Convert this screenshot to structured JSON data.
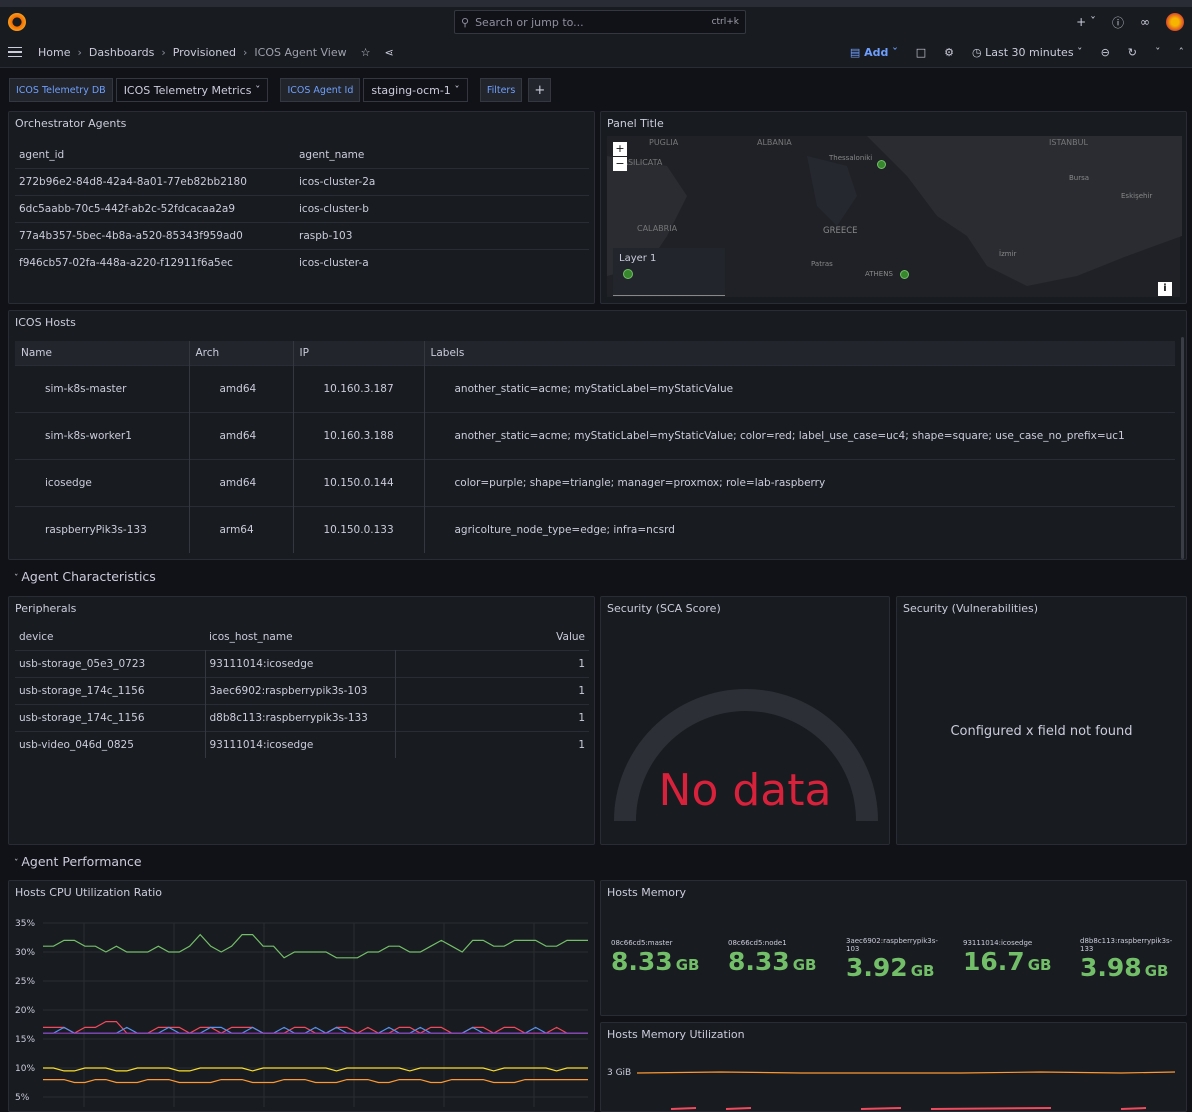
{
  "search": {
    "placeholder": "Search or jump to...",
    "shortcut": "ctrl+k"
  },
  "breadcrumbs": [
    "Home",
    "Dashboards",
    "Provisioned",
    "ICOS Agent View"
  ],
  "toolbar": {
    "add_label": "Add",
    "time_range": "Last 30 minutes"
  },
  "variables": [
    {
      "label": "ICOS Telemetry DB",
      "value": "ICOS Telemetry Metrics"
    },
    {
      "label": "ICOS Agent Id",
      "value": "staging-ocm-1"
    }
  ],
  "filters_label": "Filters",
  "agents_panel": {
    "title": "Orchestrator Agents",
    "columns": [
      "agent_id",
      "agent_name"
    ],
    "rows": [
      [
        "272b96e2-84d8-42a4-8a01-77eb82bb2180",
        "icos-cluster-2a"
      ],
      [
        "6dc5aabb-70c5-442f-ab2c-52fdcacaa2a9",
        "icos-cluster-b"
      ],
      [
        "77a4b357-5bec-4b8a-a520-85343f959ad0",
        "raspb-103"
      ],
      [
        "f946cb57-02fa-448a-a220-f12911f6a5ec",
        "icos-cluster-a"
      ]
    ]
  },
  "map_panel": {
    "title": "Panel Title",
    "places": [
      "PUGLIA",
      "ALBANIA",
      "ISTANBUL",
      "Thessaloniki",
      "Bursa",
      "BASILICATA",
      "Eskişehir",
      "CALABRIA",
      "GREECE",
      "İzmir",
      "Patras",
      "ATHENS"
    ],
    "layer_label": "Layer 1",
    "zoom_in": "+",
    "zoom_out": "−",
    "info": "i"
  },
  "hosts_panel": {
    "title": "ICOS Hosts",
    "columns": [
      "Name",
      "Arch",
      "IP",
      "Labels"
    ],
    "rows": [
      [
        "sim-k8s-master",
        "amd64",
        "10.160.3.187",
        "another_static=acme; myStaticLabel=myStaticValue"
      ],
      [
        "sim-k8s-worker1",
        "amd64",
        "10.160.3.188",
        "another_static=acme; myStaticLabel=myStaticValue; color=red; label_use_case=uc4; shape=square; use_case_no_prefix=uc1"
      ],
      [
        "icosedge",
        "amd64",
        "10.150.0.144",
        "color=purple; shape=triangle; manager=proxmox; role=lab-raspberry"
      ],
      [
        "raspberryPik3s-133",
        "arm64",
        "10.150.0.133",
        "agricolture_node_type=edge; infra=ncsrd"
      ]
    ]
  },
  "row_characteristics": "Agent Characteristics",
  "peripherals_panel": {
    "title": "Peripherals",
    "columns": [
      "device",
      "icos_host_name",
      "Value"
    ],
    "rows": [
      [
        "usb-storage_05e3_0723",
        "93111014:icosedge",
        "1"
      ],
      [
        "usb-storage_174c_1156",
        "3aec6902:raspberrypik3s-103",
        "1"
      ],
      [
        "usb-storage_174c_1156",
        "d8b8c113:raspberrypik3s-133",
        "1"
      ],
      [
        "usb-video_046d_0825",
        "93111014:icosedge",
        "1"
      ]
    ]
  },
  "sca_panel": {
    "title": "Security (SCA Score)",
    "message": "No data"
  },
  "vuln_panel": {
    "title": "Security (Vulnerabilities)",
    "message": "Configured x field not found"
  },
  "row_performance": "Agent Performance",
  "cpu_panel": {
    "title": "Hosts CPU Utilization Ratio",
    "yticks": [
      "35%",
      "30%",
      "25%",
      "20%",
      "15%",
      "10%",
      "5%"
    ]
  },
  "memory_panel": {
    "title": "Hosts Memory",
    "stats": [
      {
        "name": "08c66cd5:master",
        "value": "8.33",
        "unit": "GB"
      },
      {
        "name": "08c66cd5:node1",
        "value": "8.33",
        "unit": "GB"
      },
      {
        "name": "3aec6902:raspberrypik3s-103",
        "value": "3.92",
        "unit": "GB"
      },
      {
        "name": "93111014:icosedge",
        "value": "16.7",
        "unit": "GB"
      },
      {
        "name": "d8b8c113:raspberrypik3s-133",
        "value": "3.98",
        "unit": "GB"
      }
    ]
  },
  "memutil_panel": {
    "title": "Hosts Memory Utilization",
    "ytick": "3 GiB"
  },
  "chart_data": {
    "type": "line",
    "title": "Hosts CPU Utilization Ratio",
    "ylim": [
      5,
      35
    ],
    "series": [
      {
        "color": "#73bf69",
        "values": [
          31,
          31,
          32,
          32,
          31,
          31,
          30,
          31,
          30,
          30,
          30,
          31,
          30,
          30,
          31,
          33,
          31,
          30,
          31,
          33,
          33,
          31,
          31,
          29,
          30,
          30,
          30,
          30,
          29,
          29,
          29,
          30,
          30,
          31,
          31,
          30,
          30,
          31,
          32,
          31,
          30,
          32,
          32,
          31,
          31,
          32,
          32,
          32,
          31,
          31,
          32,
          32,
          32
        ]
      },
      {
        "color": "#f2495c",
        "values": [
          17,
          17,
          17,
          16,
          17,
          17,
          18,
          18,
          16,
          16,
          16,
          17,
          17,
          17,
          16,
          17,
          17,
          16,
          17,
          17,
          17,
          16,
          16,
          16,
          17,
          17,
          16,
          16,
          17,
          17,
          16,
          17,
          16,
          16,
          17,
          17,
          16,
          17,
          17,
          16,
          16,
          17,
          17,
          16,
          17,
          17,
          16,
          16,
          16,
          17,
          16,
          16,
          16
        ]
      },
      {
        "color": "#5794f2",
        "values": [
          16,
          16,
          17,
          16,
          16,
          16,
          16,
          16,
          17,
          16,
          16,
          16,
          17,
          16,
          16,
          16,
          17,
          17,
          16,
          16,
          17,
          16,
          16,
          17,
          16,
          16,
          17,
          16,
          17,
          16,
          16,
          16,
          16,
          17,
          16,
          16,
          17,
          16,
          16,
          16,
          16,
          17,
          16,
          16,
          16,
          16,
          16,
          17,
          16,
          16,
          16,
          16,
          16
        ]
      },
      {
        "color": "#8f3bb8",
        "values": [
          16,
          16,
          16,
          16,
          16,
          16,
          16,
          16,
          16,
          16,
          16,
          16,
          16,
          16,
          16,
          16,
          16,
          16,
          16,
          16,
          16,
          16,
          16,
          16,
          16,
          16,
          16,
          16,
          16,
          16,
          16,
          16,
          16,
          16,
          16,
          16,
          16,
          16,
          16,
          16,
          16,
          16,
          16,
          16,
          16,
          16,
          16,
          16,
          16,
          16,
          16,
          16,
          16
        ]
      },
      {
        "color": "#fade2a",
        "values": [
          10,
          10,
          9.5,
          9.5,
          10,
          10,
          10,
          9.5,
          9.5,
          10,
          10,
          10,
          10,
          9.5,
          9.5,
          10,
          10,
          10,
          10,
          10,
          9.5,
          10,
          10,
          10,
          10,
          10,
          10,
          10,
          9.5,
          10,
          10,
          10,
          10,
          10,
          10,
          9.5,
          10,
          10,
          10,
          10,
          10,
          10,
          10,
          9.5,
          10,
          10,
          10,
          10,
          10,
          9.5,
          10,
          10,
          10
        ]
      },
      {
        "color": "#ff9830",
        "values": [
          8,
          8,
          8,
          7.5,
          7.5,
          8,
          8,
          7.5,
          7.5,
          7.5,
          8,
          8,
          8,
          7.5,
          7.5,
          7.5,
          7.5,
          8,
          8,
          8,
          7.5,
          7.5,
          7.5,
          8,
          8,
          8,
          7.5,
          7.5,
          7.5,
          8,
          8,
          8,
          7.5,
          7.5,
          8,
          8,
          8,
          7.5,
          7.5,
          8,
          8,
          8,
          8,
          7.5,
          7.5,
          7.5,
          8,
          8,
          8,
          8,
          8,
          8,
          8
        ]
      }
    ]
  }
}
